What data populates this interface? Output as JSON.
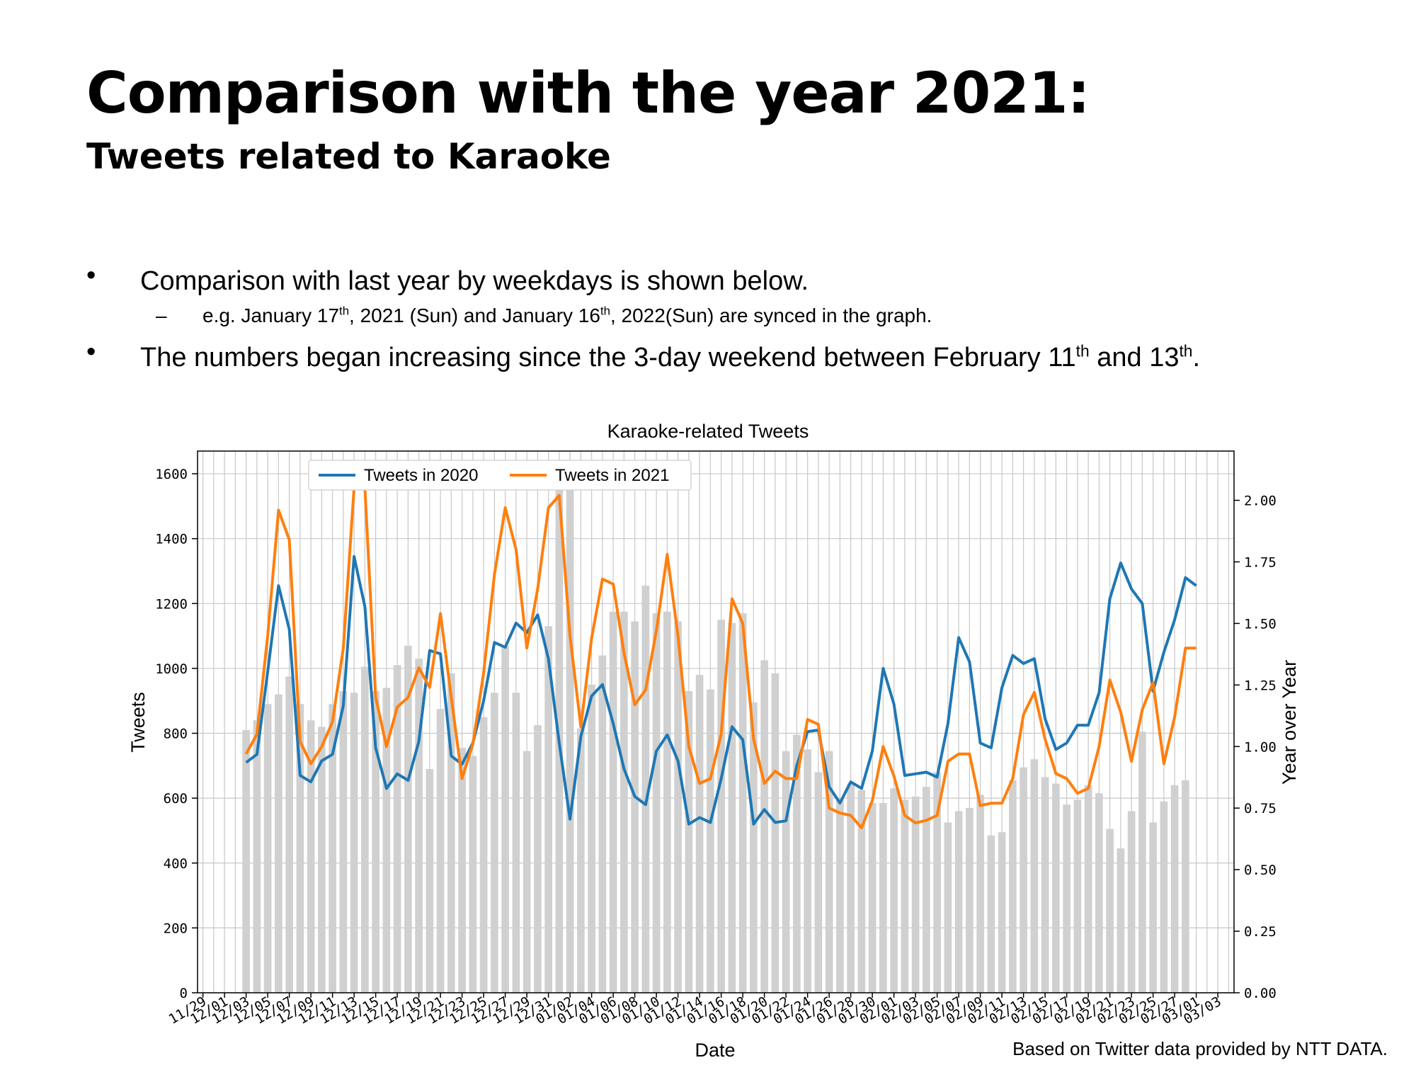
{
  "slide": {
    "title": "Comparison with the year 2021:",
    "subtitle": "Tweets related to Karaoke",
    "bullets": [
      {
        "mark": "•",
        "parts": [
          "Comparison with last year by weekdays is shown below."
        ]
      },
      {
        "mark": "–",
        "parts": [
          "e.g. January 17",
          "th",
          ", 2021 (Sun) and January 16",
          "th",
          ", 2022(Sun) are synced in the graph."
        ]
      },
      {
        "mark": "•",
        "parts": [
          "The numbers began increasing since the 3-day weekend between February 11",
          "th",
          " and 13",
          "th",
          "."
        ]
      }
    ],
    "footer": "Based on Twitter data provided by NTT DATA."
  },
  "chart_data": {
    "type": "bar+line",
    "title": "Karaoke-related Tweets",
    "xlabel": "Date",
    "ylabel_left": "Tweets",
    "ylabel_right": "Year over Year",
    "ylim_left": [
      0,
      1670
    ],
    "ylim_right": [
      0,
      2.2
    ],
    "yticks_left": [
      0,
      200,
      400,
      600,
      800,
      1000,
      1200,
      1400,
      1600
    ],
    "yticks_right": [
      "0.00",
      "0.25",
      "0.50",
      "0.75",
      "1.00",
      "1.25",
      "1.50",
      "1.75",
      "2.00"
    ],
    "grid": true,
    "legend_position": "top-left",
    "x_start": "11/29",
    "x_end": "03/04",
    "x_tick_labels": [
      "11/29",
      "12/01",
      "12/03",
      "12/05",
      "12/07",
      "12/09",
      "12/11",
      "12/13",
      "12/15",
      "12/17",
      "12/19",
      "12/21",
      "12/23",
      "12/25",
      "12/27",
      "12/29",
      "12/31",
      "01/02",
      "01/04",
      "01/06",
      "01/08",
      "01/10",
      "01/12",
      "01/14",
      "01/16",
      "01/18",
      "01/20",
      "01/22",
      "01/24",
      "01/26",
      "01/28",
      "01/30",
      "02/01",
      "02/03",
      "02/05",
      "02/07",
      "02/09",
      "02/11",
      "02/13",
      "02/15",
      "02/17",
      "02/19",
      "02/21",
      "02/23",
      "02/25",
      "02/27",
      "03/01",
      "03/03"
    ],
    "bar_color": "#d0d0d0",
    "bars_start": "12/03",
    "bars": [
      810,
      840,
      890,
      920,
      975,
      890,
      840,
      820,
      890,
      930,
      925,
      1005,
      930,
      940,
      1010,
      1070,
      1030,
      690,
      875,
      985,
      755,
      730,
      850,
      925,
      1070,
      925,
      745,
      825,
      1130,
      1570,
      1560,
      815,
      950,
      1040,
      1175,
      1175,
      1145,
      1255,
      1170,
      1175,
      1145,
      930,
      980,
      935,
      1150,
      1140,
      1170,
      895,
      1025,
      985,
      745,
      795,
      750,
      680,
      745,
      600,
      645,
      625,
      585,
      585,
      630,
      595,
      605,
      635,
      680,
      525,
      560,
      570,
      610,
      485,
      495,
      655,
      695,
      720,
      665,
      645,
      580,
      595,
      640,
      615,
      505,
      445,
      560,
      805,
      525,
      590,
      640,
      655
    ],
    "series": [
      {
        "name": "Tweets in 2020",
        "axis": "left",
        "color": "#1f77b4",
        "values": [
          710,
          735,
          990,
          1255,
          1120,
          670,
          650,
          715,
          735,
          885,
          1345,
          1190,
          755,
          630,
          675,
          655,
          775,
          1055,
          1045,
          730,
          705,
          770,
          900,
          1080,
          1065,
          1140,
          1110,
          1165,
          1030,
          770,
          535,
          790,
          915,
          950,
          830,
          690,
          605,
          580,
          745,
          795,
          715,
          520,
          540,
          525,
          660,
          820,
          780,
          520,
          565,
          525,
          530,
          700,
          805,
          810,
          635,
          585,
          650,
          630,
          745,
          1000,
          890,
          670,
          675,
          680,
          665,
          830,
          1095,
          1020,
          770,
          755,
          940,
          1040,
          1015,
          1030,
          845,
          750,
          770,
          825,
          825,
          925,
          1215,
          1325,
          1245,
          1200,
          930,
          1050,
          1150,
          1280,
          1255
        ]
      },
      {
        "name": "Tweets in 2021",
        "axis": "right",
        "color": "#ff7f0e",
        "values": [
          0.97,
          1.05,
          1.45,
          1.96,
          1.84,
          1.02,
          0.93,
          1.0,
          1.1,
          1.4,
          2.05,
          2.05,
          1.2,
          1.0,
          1.16,
          1.2,
          1.32,
          1.24,
          1.54,
          1.2,
          0.87,
          1.01,
          1.3,
          1.7,
          1.97,
          1.8,
          1.4,
          1.64,
          1.97,
          2.02,
          1.45,
          1.08,
          1.44,
          1.68,
          1.66,
          1.38,
          1.17,
          1.23,
          1.47,
          1.78,
          1.45,
          1.0,
          0.85,
          0.87,
          1.05,
          1.6,
          1.5,
          1.03,
          0.85,
          0.9,
          0.87,
          0.87,
          1.11,
          1.09,
          0.75,
          0.73,
          0.72,
          0.67,
          0.78,
          1.0,
          0.88,
          0.72,
          0.69,
          0.7,
          0.72,
          0.94,
          0.97,
          0.97,
          0.76,
          0.77,
          0.77,
          0.87,
          1.13,
          1.22,
          1.03,
          0.89,
          0.87,
          0.81,
          0.83,
          1.0,
          1.27,
          1.14,
          0.94,
          1.15,
          1.26,
          0.93,
          1.12,
          1.4,
          1.4
        ]
      }
    ]
  }
}
